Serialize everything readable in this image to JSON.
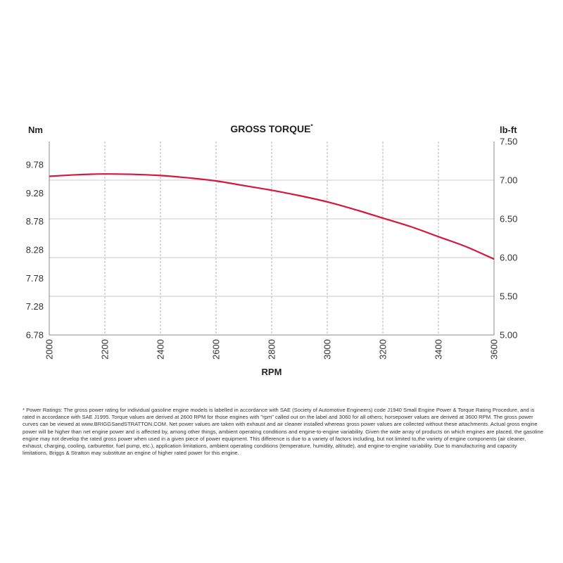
{
  "chart_data": {
    "type": "line",
    "title": "GROSS TORQUE",
    "title_marker": "*",
    "xlabel": "RPM",
    "ylabel_left": "Nm",
    "ylabel_right": "lb-ft",
    "x_ticks": [
      "2000",
      "2200",
      "2400",
      "2600",
      "2800",
      "3000",
      "3200",
      "3400",
      "3600"
    ],
    "xlim": [
      2000,
      3600
    ],
    "y_left_ticks": [
      "9.78",
      "9.28",
      "8.78",
      "8.28",
      "7.78",
      "7.28",
      "6.78"
    ],
    "y_right_ticks": [
      "7.50",
      "7.00",
      "6.50",
      "6.00",
      "5.50",
      "5.00"
    ],
    "ylim_right": [
      5.0,
      7.5
    ],
    "grid": true,
    "line_color": "#d4173a",
    "series": [
      {
        "x": [
          2000,
          2100,
          2200,
          2300,
          2400,
          2500,
          2600,
          2700,
          2800,
          2900,
          3000,
          3100,
          3200,
          3300,
          3400,
          3500,
          3600
        ],
        "values": [
          7.05,
          7.07,
          7.08,
          7.075,
          7.06,
          7.03,
          6.99,
          6.93,
          6.87,
          6.8,
          6.72,
          6.62,
          6.51,
          6.4,
          6.27,
          6.14,
          5.98
        ]
      }
    ]
  },
  "footnote": "* Power Ratings: The gross power rating for individual gasoline engine models is labelled in accordance with SAE (Society of Automotive Engineers) code J1940 Small Engine Power & Torque Rating Procedure, and is rated in accordance with SAE J1995. Torque values are derived at 2600 RPM for those engines with \"rpm\" called out on the label and 3060 for all others; horsepower values are derived at 3600 RPM. The gross power curves can be viewed at www.BRIGGSandSTRATTON.COM. Net power values are taken with exhaust and air cleaner installed whereas gross power values are collected without these attachments. Actual gross engine power will be higher than net engine power and is affected by, among other things, ambient operating conditions and engine-to-engine variability. Given the wide array of products on which engines are placed, the gasoline engine may not develop the rated gross power when used in a given piece of power equipment. This difference is due to a variety of factors including, but not limited to,the variety of engine components (air cleaner, exhaust, charging, cooling, carburettor, fuel pump, etc.), application limitations, ambient operating conditions (temperature, humidity, altitude), and engine-to-engine variability. Due to manufacturing and capacity limitations, Briggs & Stratton may substitute an engine of higher rated power for this engine."
}
